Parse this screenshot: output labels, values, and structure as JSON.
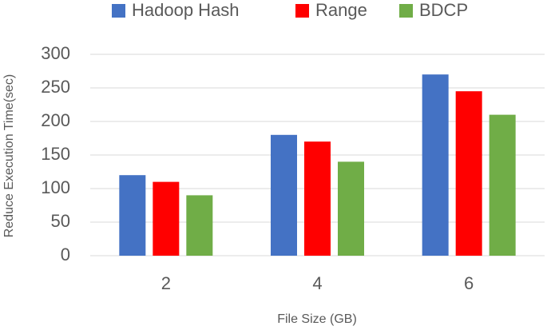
{
  "chart_data": {
    "type": "bar",
    "x_label": "File Size (GB)",
    "y_label": "Reduce Execution Time(sec)",
    "categories": [
      "2",
      "4",
      "6"
    ],
    "series": [
      {
        "name": "Hadoop Hash",
        "color": "#4472c4",
        "values": [
          120,
          180,
          270
        ]
      },
      {
        "name": "Range",
        "color": "#ff0000",
        "values": [
          110,
          170,
          245
        ]
      },
      {
        "name": "BDCP",
        "color": "#70ad47",
        "values": [
          90,
          140,
          210
        ]
      }
    ],
    "ylim": [
      0,
      300
    ],
    "yticks": [
      0,
      50,
      100,
      150,
      200,
      250,
      300
    ],
    "grid": true,
    "legend": "top"
  }
}
